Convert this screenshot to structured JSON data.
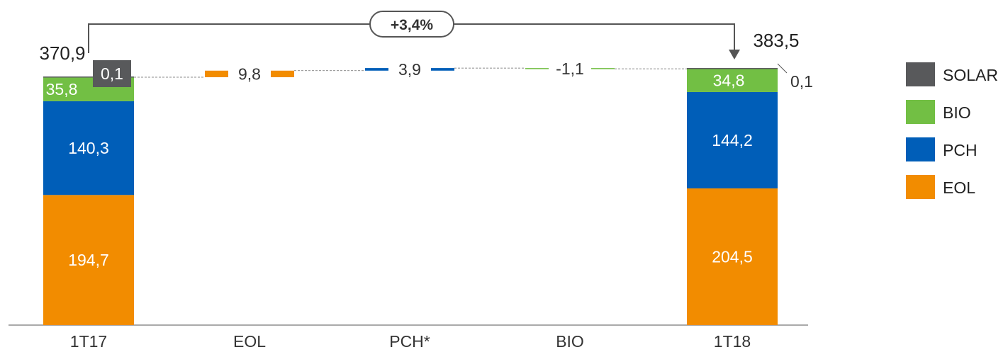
{
  "chart_data": {
    "type": "waterfall-stacked-bar",
    "categories": [
      "1T17",
      "EOL",
      "PCH*",
      "BIO",
      "1T18"
    ],
    "series": [
      {
        "name": "EOL",
        "values": [
          194.7,
          null,
          null,
          null,
          204.5
        ],
        "labels": [
          "194,7",
          null,
          null,
          null,
          "204,5"
        ]
      },
      {
        "name": "PCH",
        "values": [
          140.3,
          null,
          null,
          null,
          144.2
        ],
        "labels": [
          "140,3",
          null,
          null,
          null,
          "144,2"
        ]
      },
      {
        "name": "BIO",
        "values": [
          35.8,
          null,
          null,
          null,
          34.8
        ],
        "labels": [
          "35,8",
          null,
          null,
          null,
          "34,8"
        ]
      },
      {
        "name": "SOLAR",
        "values": [
          0.1,
          null,
          null,
          null,
          0.1
        ],
        "labels": [
          "0,1",
          null,
          null,
          null,
          "0,1"
        ]
      }
    ],
    "deltas": [
      {
        "category": "EOL",
        "value": 9.8,
        "label": "9,8",
        "series": "EOL"
      },
      {
        "category": "PCH*",
        "value": 3.9,
        "label": "3,9",
        "series": "PCH"
      },
      {
        "category": "BIO",
        "value": -1.1,
        "label": "-1,1",
        "series": "BIO"
      }
    ],
    "totals": [
      {
        "category": "1T17",
        "value": 370.9,
        "label": "370,9"
      },
      {
        "category": "1T18",
        "value": 383.5,
        "label": "383,5"
      }
    ],
    "growth_label": "+3,4%",
    "legend": {
      "position": "right",
      "items": [
        {
          "name": "SOLAR",
          "label": "SOLAR"
        },
        {
          "name": "BIO",
          "label": "BIO"
        },
        {
          "name": "PCH",
          "label": "PCH"
        },
        {
          "name": "EOL",
          "label": "EOL"
        }
      ]
    },
    "colors": {
      "EOL": "#F28C00",
      "PCH": "#005EB8",
      "BIO": "#72BF44",
      "SOLAR": "#58595B"
    },
    "title": "",
    "xlabel": "",
    "ylabel": "",
    "ylim": [
      0,
      383.5
    ],
    "grid": false
  }
}
